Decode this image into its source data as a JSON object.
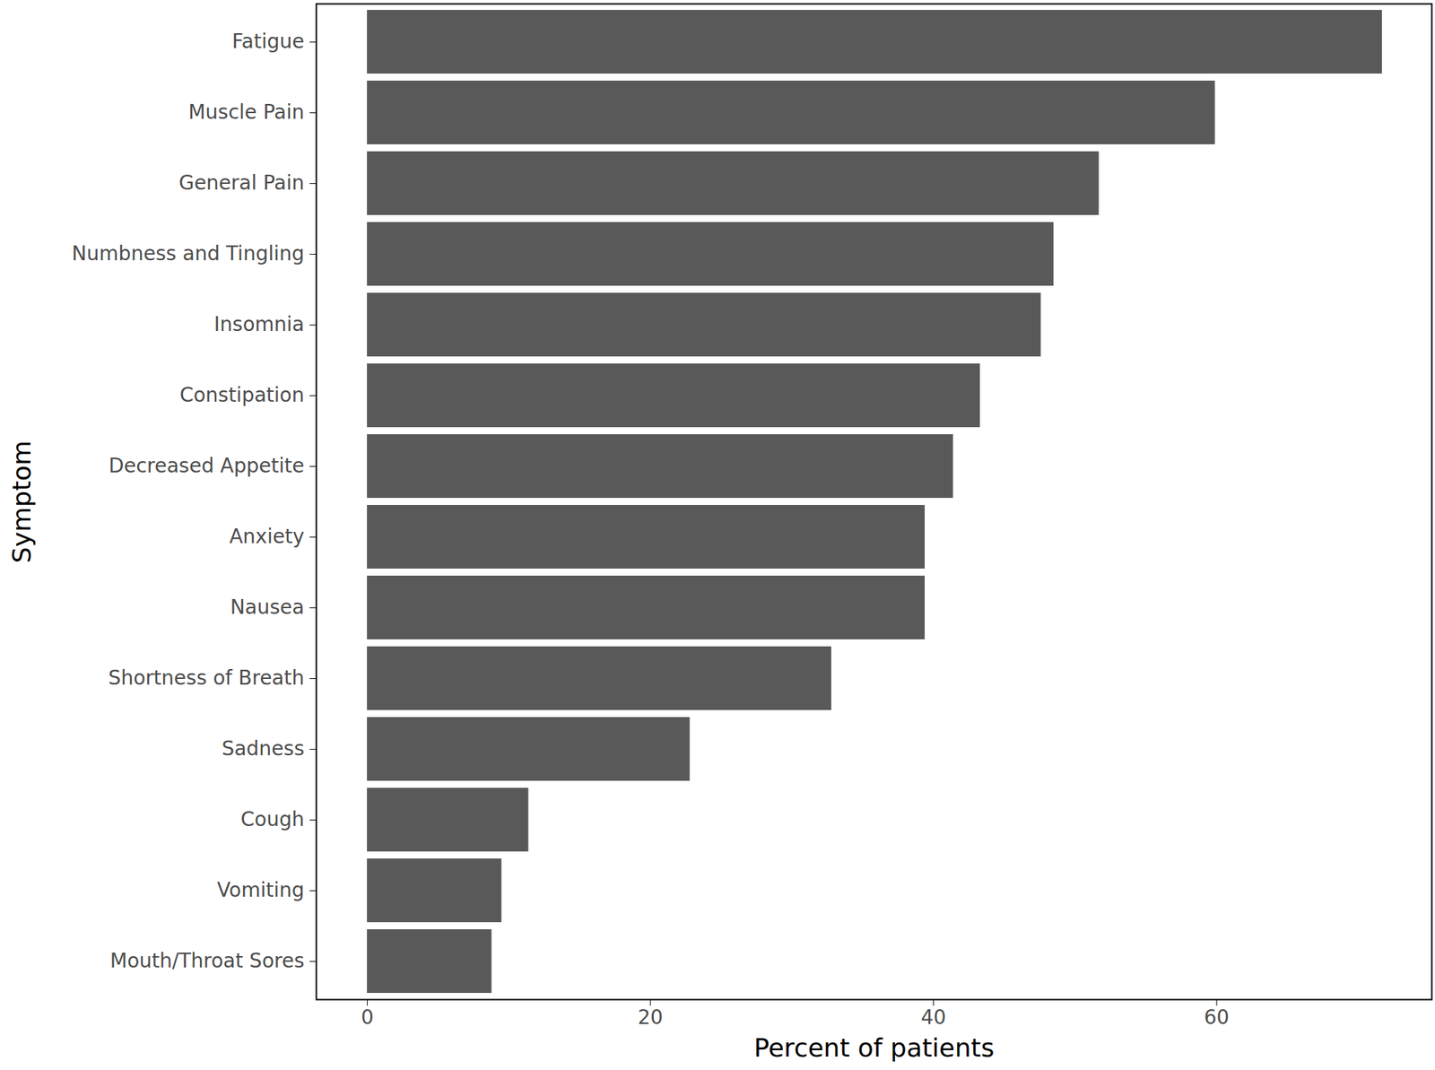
{
  "chart_data": {
    "type": "bar",
    "orientation": "horizontal",
    "xlabel": "Percent of patients",
    "ylabel": "Symptom",
    "categories": [
      "Fatigue",
      "Muscle Pain",
      "General Pain",
      "Numbness and Tingling",
      "Insomnia",
      "Constipation",
      "Decreased Appetite",
      "Anxiety",
      "Nausea",
      "Shortness of Breath",
      "Sadness",
      "Cough",
      "Vomiting",
      "Mouth/Throat Sores"
    ],
    "values": [
      71.7,
      59.9,
      51.7,
      48.5,
      47.6,
      43.3,
      41.4,
      39.4,
      39.4,
      32.8,
      22.8,
      11.4,
      9.5,
      8.8
    ],
    "color": "#595959",
    "xlim": [
      -3.6,
      75.2
    ],
    "xticks": [
      0,
      20,
      40,
      60
    ],
    "grid": false
  }
}
